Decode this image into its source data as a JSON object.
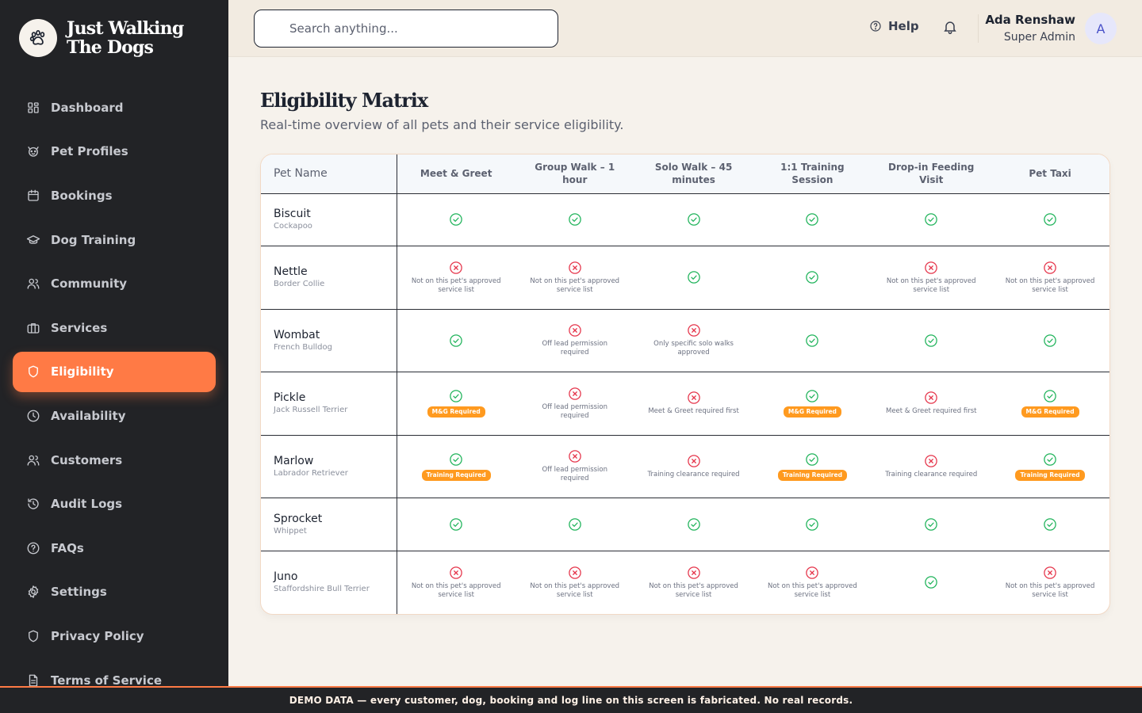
{
  "brand": {
    "line1": "Just Walking",
    "line2": "The Dogs"
  },
  "nav": [
    {
      "label": "Dashboard",
      "icon": "dashboard-icon"
    },
    {
      "label": "Pet Profiles",
      "icon": "paw-icon"
    },
    {
      "label": "Bookings",
      "icon": "calendar-icon"
    },
    {
      "label": "Dog Training",
      "icon": "graduation-cap-icon"
    },
    {
      "label": "Community",
      "icon": "users-icon"
    },
    {
      "label": "Services",
      "icon": "briefcase-icon"
    },
    {
      "label": "Eligibility",
      "icon": "shield-icon",
      "active": true
    },
    {
      "label": "Availability",
      "icon": "clock-icon"
    },
    {
      "label": "Customers",
      "icon": "users-icon"
    },
    {
      "label": "Audit Logs",
      "icon": "history-icon"
    },
    {
      "label": "FAQs",
      "icon": "help-circle-icon"
    },
    {
      "label": "Settings",
      "icon": "gear-icon"
    },
    {
      "label": "Privacy Policy",
      "icon": "shield-icon"
    },
    {
      "label": "Terms of Service",
      "icon": "document-icon"
    }
  ],
  "header": {
    "search_placeholder": "Search anything...",
    "help_label": "Help",
    "user_name": "Ada Renshaw",
    "user_role": "Super Admin",
    "avatar_initial": "A"
  },
  "page": {
    "title": "Eligibility Matrix",
    "subtitle": "Real-time overview of all pets and their service eligibility."
  },
  "table": {
    "pet_column": "Pet Name",
    "services": [
      "Meet & Greet",
      "Group Walk – 1 hour",
      "Solo Walk – 45 minutes",
      "1:1 Training Session",
      "Drop-in Feeding Visit",
      "Pet Taxi"
    ],
    "rows": [
      {
        "name": "Biscuit",
        "breed": "Cockapoo",
        "height": 66,
        "cells": [
          {
            "ok": true
          },
          {
            "ok": true
          },
          {
            "ok": true
          },
          {
            "ok": true
          },
          {
            "ok": true
          },
          {
            "ok": true
          }
        ]
      },
      {
        "name": "Nettle",
        "breed": "Border Collie",
        "height": 80,
        "cells": [
          {
            "ok": false,
            "reason": "Not on this pet's approved service list"
          },
          {
            "ok": false,
            "reason": "Not on this pet's approved service list"
          },
          {
            "ok": true
          },
          {
            "ok": true
          },
          {
            "ok": false,
            "reason": "Not on this pet's approved service list"
          },
          {
            "ok": false,
            "reason": "Not on this pet's approved service list"
          }
        ]
      },
      {
        "name": "Wombat",
        "breed": "French Bulldog",
        "height": 79,
        "cells": [
          {
            "ok": true
          },
          {
            "ok": false,
            "reason": "Off lead permission required"
          },
          {
            "ok": false,
            "reason": "Only specific solo walks approved"
          },
          {
            "ok": true
          },
          {
            "ok": true
          },
          {
            "ok": true
          }
        ]
      },
      {
        "name": "Pickle",
        "breed": "Jack Russell Terrier",
        "height": 80,
        "cells": [
          {
            "ok": true,
            "badge": "M&G Required"
          },
          {
            "ok": false,
            "reason": "Off lead permission required"
          },
          {
            "ok": false,
            "reason": "Meet & Greet required first"
          },
          {
            "ok": true,
            "badge": "M&G Required"
          },
          {
            "ok": false,
            "reason": "Meet & Greet required first"
          },
          {
            "ok": true,
            "badge": "M&G Required"
          }
        ]
      },
      {
        "name": "Marlow",
        "breed": "Labrador Retriever",
        "height": 79,
        "cells": [
          {
            "ok": true,
            "badge": "Training Required"
          },
          {
            "ok": false,
            "reason": "Off lead permission required"
          },
          {
            "ok": false,
            "reason": "Training clearance required"
          },
          {
            "ok": true,
            "badge": "Training Required"
          },
          {
            "ok": false,
            "reason": "Training clearance required"
          },
          {
            "ok": true,
            "badge": "Training Required"
          }
        ]
      },
      {
        "name": "Sprocket",
        "breed": "Whippet",
        "height": 67,
        "cells": [
          {
            "ok": true
          },
          {
            "ok": true
          },
          {
            "ok": true
          },
          {
            "ok": true
          },
          {
            "ok": true
          },
          {
            "ok": true
          }
        ]
      },
      {
        "name": "Juno",
        "breed": "Staffordshire Bull Terrier",
        "height": 80,
        "cells": [
          {
            "ok": false,
            "reason": "Not on this pet's approved service list"
          },
          {
            "ok": false,
            "reason": "Not on this pet's approved service list"
          },
          {
            "ok": false,
            "reason": "Not on this pet's approved service list"
          },
          {
            "ok": false,
            "reason": "Not on this pet's approved service list"
          },
          {
            "ok": true
          },
          {
            "ok": false,
            "reason": "Not on this pet's approved service list"
          }
        ]
      }
    ]
  },
  "footer": {
    "text": "DEMO DATA — every customer, dog, booking and log line on this screen is fabricated. No real records."
  },
  "colors": {
    "accent": "#ff7a45",
    "ok": "#1fb35a",
    "no": "#e5344a",
    "badge": "#ff9a1f",
    "sidebar": "#222326"
  }
}
